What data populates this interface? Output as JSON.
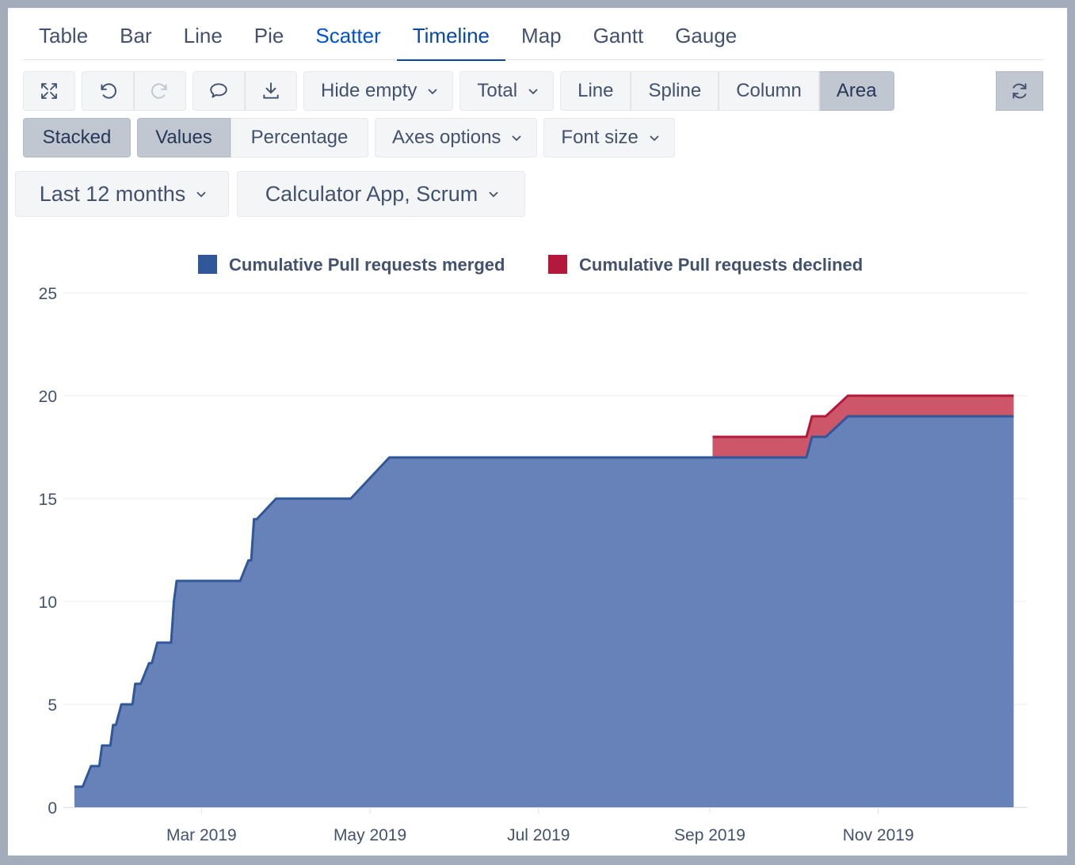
{
  "tabs": [
    "Table",
    "Bar",
    "Line",
    "Pie",
    "Scatter",
    "Timeline",
    "Map",
    "Gantt",
    "Gauge"
  ],
  "active_tab": "Timeline",
  "toolbar": {
    "icons": [
      "fullscreen-icon",
      "undo-icon",
      "redo-icon",
      "comment-icon",
      "download-icon",
      "refresh-icon"
    ],
    "hide_empty": "Hide empty",
    "total": "Total",
    "chart_types": [
      "Line",
      "Spline",
      "Column",
      "Area"
    ],
    "selected_type": "Area",
    "stacked": "Stacked",
    "values": "Values",
    "percentage": "Percentage",
    "axes_options": "Axes options",
    "font_size": "Font size"
  },
  "filters": {
    "period": "Last 12 months",
    "projects": "Calculator App, Scrum"
  },
  "colors": {
    "merged_fill": "#6682b8",
    "merged_line": "#2f579a",
    "declined_fill": "#cd5668",
    "declined_line": "#b4183a",
    "tab_active": "#0747a6",
    "tab_link": "#0052cc"
  },
  "chart_data": {
    "type": "area",
    "stacked": true,
    "xlabel": "",
    "ylabel": "",
    "ylim": [
      0,
      25
    ],
    "yticks": [
      "0",
      "5",
      "10",
      "15",
      "20",
      "25"
    ],
    "xticks": [
      {
        "label": "Mar 2019",
        "date": "2019-03-01"
      },
      {
        "label": "May 2019",
        "date": "2019-05-01"
      },
      {
        "label": "Jul 2019",
        "date": "2019-07-01"
      },
      {
        "label": "Sep 2019",
        "date": "2019-09-01"
      },
      {
        "label": "Nov 2019",
        "date": "2019-11-01"
      }
    ],
    "legend_position": "top-center",
    "grid": true,
    "series": [
      {
        "name": "Cumulative Pull requests merged",
        "points": [
          [
            "2019-01-14",
            1
          ],
          [
            "2019-01-17",
            1
          ],
          [
            "2019-01-20",
            2
          ],
          [
            "2019-01-23",
            2
          ],
          [
            "2019-01-24",
            3
          ],
          [
            "2019-01-27",
            3
          ],
          [
            "2019-01-28",
            4
          ],
          [
            "2019-01-29",
            4
          ],
          [
            "2019-01-31",
            5
          ],
          [
            "2019-02-04",
            5
          ],
          [
            "2019-02-05",
            6
          ],
          [
            "2019-02-07",
            6
          ],
          [
            "2019-02-10",
            7
          ],
          [
            "2019-02-11",
            7
          ],
          [
            "2019-02-13",
            8
          ],
          [
            "2019-02-18",
            8
          ],
          [
            "2019-02-19",
            10
          ],
          [
            "2019-02-20",
            11
          ],
          [
            "2019-03-15",
            11
          ],
          [
            "2019-03-18",
            12
          ],
          [
            "2019-03-19",
            12
          ],
          [
            "2019-03-20",
            14
          ],
          [
            "2019-03-21",
            14
          ],
          [
            "2019-03-28",
            15
          ],
          [
            "2019-04-24",
            15
          ],
          [
            "2019-05-08",
            17
          ],
          [
            "2019-10-06",
            17
          ],
          [
            "2019-10-08",
            18
          ],
          [
            "2019-10-13",
            18
          ],
          [
            "2019-10-21",
            19
          ],
          [
            "2019-12-20",
            19
          ]
        ]
      },
      {
        "name": "Cumulative Pull requests declined",
        "points": [
          [
            "2019-09-02",
            1
          ],
          [
            "2019-10-06",
            1
          ],
          [
            "2019-12-20",
            1
          ]
        ]
      }
    ]
  }
}
